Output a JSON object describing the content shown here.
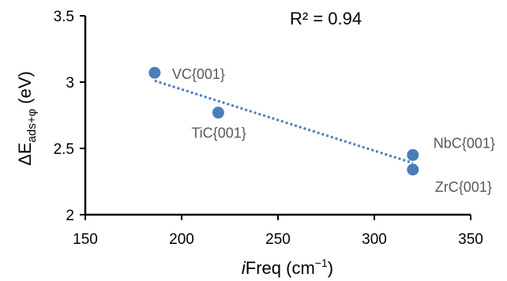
{
  "chart_data": {
    "type": "scatter",
    "title": "",
    "xlabel_prefix": "i",
    "xlabel_rest": "Freq (cm",
    "xlabel_sup": "−1",
    "xlabel_end": ")",
    "ylabel_main": "ΔE",
    "ylabel_sub": "ads+φ",
    "ylabel_end": " (eV)",
    "annotation": "R² = 0.94",
    "xlim": [
      150,
      350
    ],
    "ylim": [
      2,
      3.5
    ],
    "xticks": [
      150,
      200,
      250,
      300,
      350
    ],
    "yticks": [
      2,
      2.5,
      3,
      3.5
    ],
    "ytick_labels": [
      "2",
      "2.5",
      "3",
      "3.5"
    ],
    "grid": false,
    "series": [
      {
        "points": [
          {
            "label": "VC{001}",
            "x": 186,
            "y": 3.07
          },
          {
            "label": "TiC{001}",
            "x": 219,
            "y": 2.77
          },
          {
            "label": "NbC{001}",
            "x": 320,
            "y": 2.45
          },
          {
            "label": "ZrC{001}",
            "x": 320,
            "y": 2.34
          }
        ],
        "color": "#4a7ebb"
      }
    ],
    "trendline": {
      "type": "linear",
      "x": [
        186,
        320
      ],
      "y": [
        3.01,
        2.39
      ],
      "color": "#4a7ebb",
      "style": "dotted"
    }
  }
}
